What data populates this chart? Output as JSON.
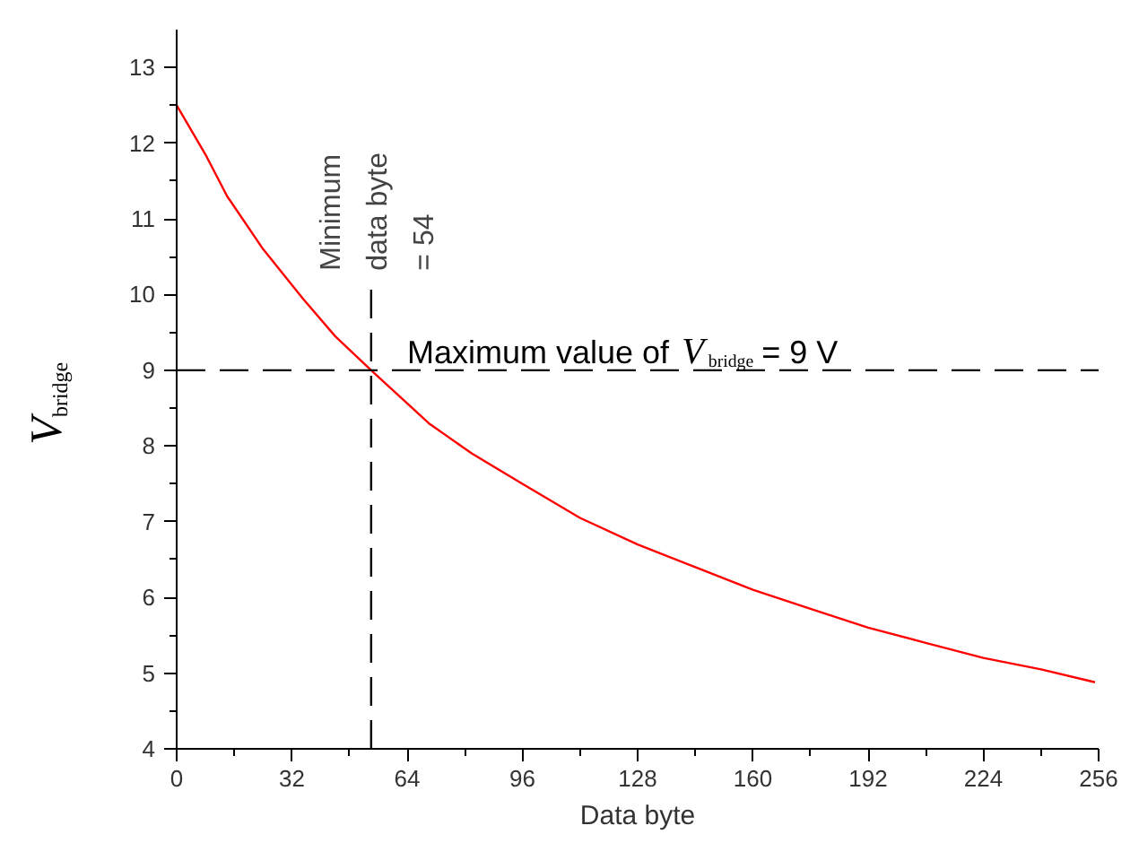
{
  "chart_data": {
    "type": "line",
    "xlabel": "Data byte",
    "ylabel": "V$_{bridge}$",
    "x": [
      0,
      8,
      14,
      24,
      35,
      44,
      54,
      70,
      82,
      96,
      112,
      128,
      144,
      160,
      176,
      192,
      208,
      224,
      240,
      255
    ],
    "series": [
      {
        "color": "#ff0000",
        "values": [
          12.5,
          11.85,
          11.3,
          10.6,
          9.95,
          9.45,
          9.0,
          8.3,
          7.9,
          7.5,
          7.05,
          6.7,
          6.4,
          6.1,
          5.85,
          5.6,
          5.4,
          5.2,
          5.05,
          4.88
        ]
      }
    ],
    "xlim": [
      0,
      256
    ],
    "ylim": [
      4,
      13.5
    ],
    "xticks": [
      0,
      32,
      64,
      96,
      128,
      160,
      192,
      224,
      256
    ],
    "yticks": [
      4,
      5,
      6,
      7,
      8,
      9,
      10,
      11,
      12,
      13
    ],
    "ref_lines": [
      {
        "axis": "x",
        "value": 54,
        "label": "Minimum\ndata byte\n= 54",
        "color": "#000000",
        "line_style": "dashed"
      },
      {
        "axis": "y",
        "value": 9,
        "label": "Maximum value of V$_{bridge}$ = 9 V",
        "color": "#000000",
        "line_style": "dashed"
      }
    ],
    "grid": false,
    "marker": "none",
    "line_style": "solid"
  }
}
